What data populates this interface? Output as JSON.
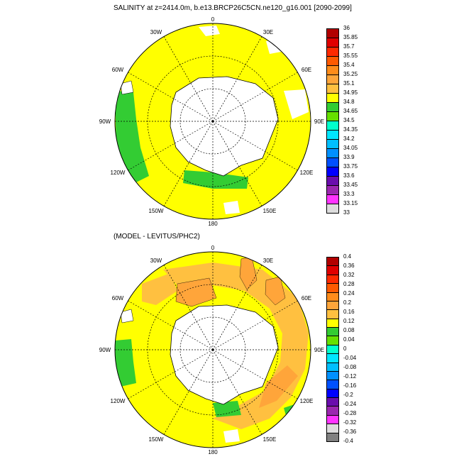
{
  "panels": [
    {
      "title": "SALINITY at z=2414.0m, b.e13.BRCP26C5CN.ne120_g16.001 [2090-2099]",
      "lon_labels": [
        "0",
        "30E",
        "60E",
        "90E",
        "120E",
        "150E",
        "180",
        "150W",
        "120W",
        "90W",
        "60W",
        "30W"
      ],
      "colorbar": {
        "labels": [
          "36",
          "35.85",
          "35.7",
          "35.55",
          "35.4",
          "35.25",
          "35.1",
          "34.95",
          "34.8",
          "34.65",
          "34.5",
          "34.35",
          "34.2",
          "34.05",
          "33.9",
          "33.75",
          "33.6",
          "33.45",
          "33.3",
          "33.15",
          "33"
        ],
        "colors": [
          "#b20000",
          "#e00000",
          "#ff2a00",
          "#ff5a00",
          "#ff8c1a",
          "#ffa53a",
          "#ffc040",
          "#ffff00",
          "#33cc33",
          "#66e000",
          "#00ffcc",
          "#00e6ff",
          "#00bfff",
          "#0090ff",
          "#0050ff",
          "#0000ff",
          "#6a0dad",
          "#9c27b0",
          "#ff33ff",
          "#dddddd"
        ]
      }
    },
    {
      "title": "(MODEL - LEVITUS/PHC2)",
      "lon_labels": [
        "0",
        "30E",
        "60E",
        "90E",
        "120E",
        "150E",
        "180",
        "150W",
        "120W",
        "90W",
        "60W",
        "30W"
      ],
      "colorbar": {
        "labels": [
          "0.4",
          "0.36",
          "0.32",
          "0.28",
          "0.24",
          "0.2",
          "0.16",
          "0.12",
          "0.08",
          "0.04",
          "0",
          "-0.04",
          "-0.08",
          "-0.12",
          "-0.16",
          "-0.2",
          "-0.24",
          "-0.28",
          "-0.32",
          "-0.36",
          "-0.4"
        ],
        "colors": [
          "#b20000",
          "#e00000",
          "#ff2a00",
          "#ff5a00",
          "#ff8c1a",
          "#ffa53a",
          "#ffc040",
          "#ffff00",
          "#33cc33",
          "#66e000",
          "#00ffcc",
          "#00e6ff",
          "#00bfff",
          "#0090ff",
          "#0050ff",
          "#0000ff",
          "#6a0dad",
          "#9c27b0",
          "#ff33ff",
          "#dddddd",
          "#808080"
        ]
      }
    }
  ]
}
